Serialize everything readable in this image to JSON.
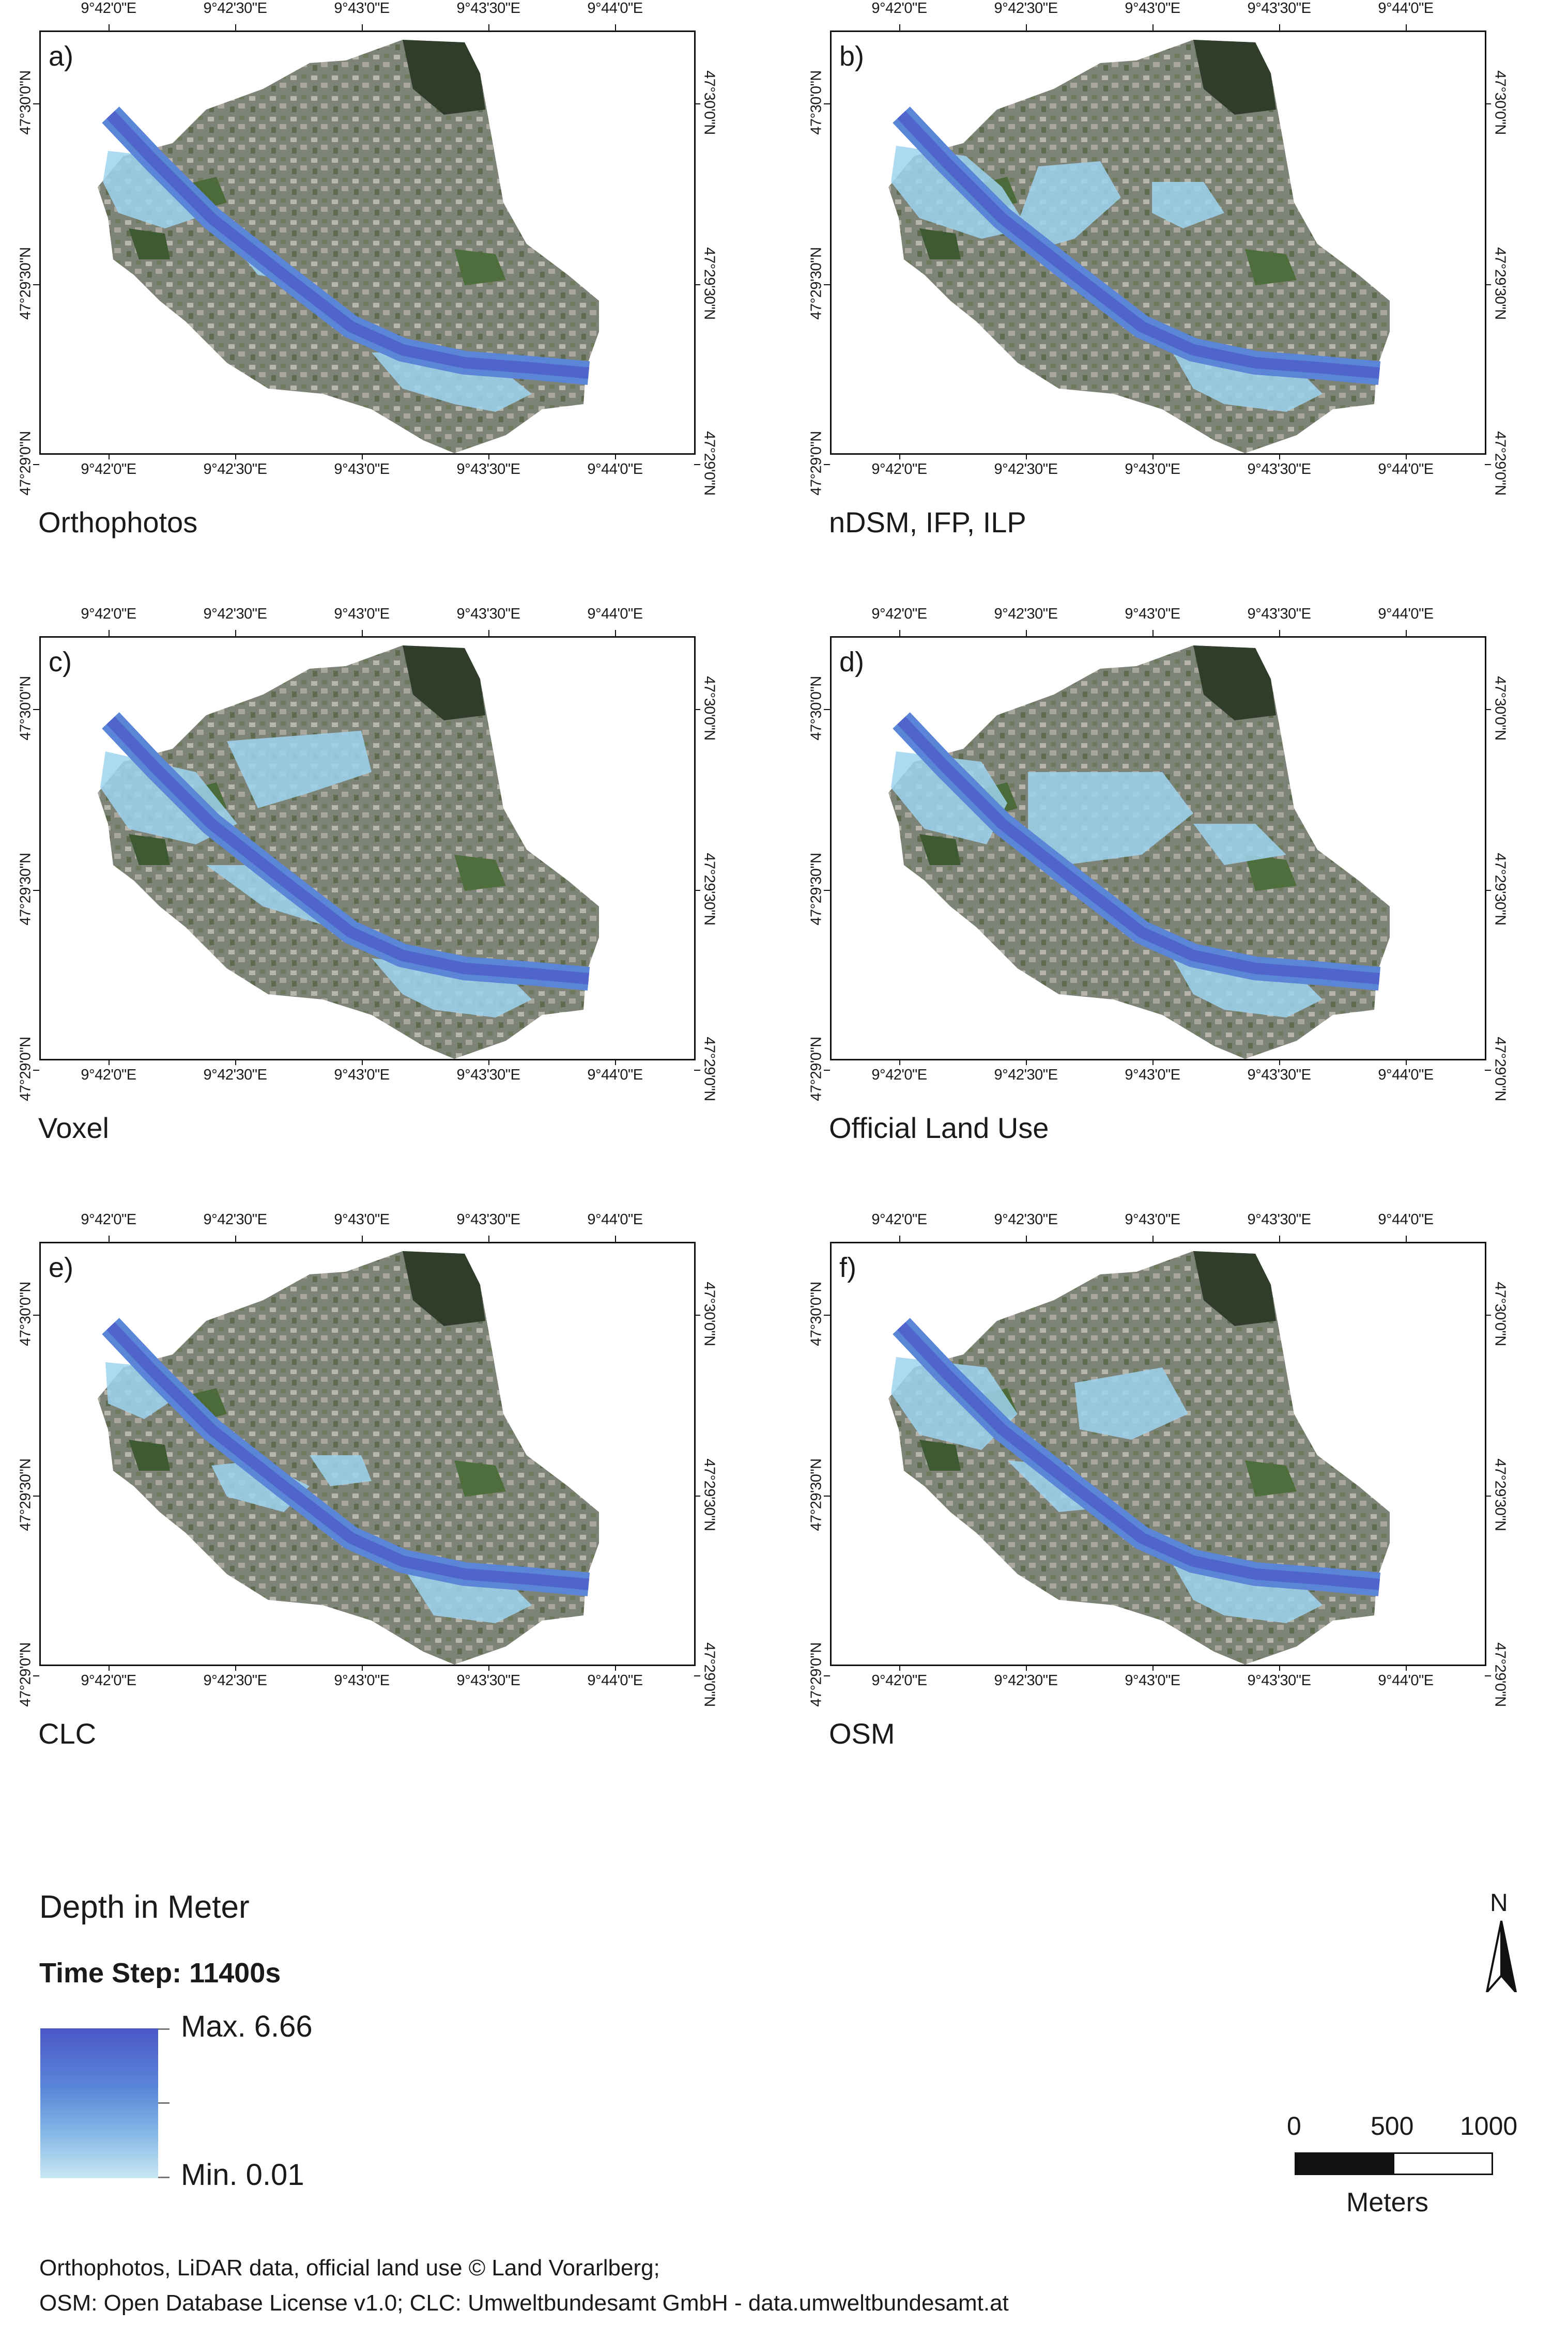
{
  "axis_ticks": {
    "lon": [
      "9°42'0\"E",
      "9°42'30\"E",
      "9°43'0\"E",
      "9°43'30\"E",
      "9°44'0\"E"
    ],
    "lat": [
      "47°30'0\"N",
      "47°29'30\"N",
      "47°29'0\"N"
    ]
  },
  "panels": [
    {
      "letter": "a)",
      "caption": "Orthophotos"
    },
    {
      "letter": "b)",
      "caption": "nDSM, IFP, ILP"
    },
    {
      "letter": "c)",
      "caption": "Voxel"
    },
    {
      "letter": "d)",
      "caption": "Official Land Use"
    },
    {
      "letter": "e)",
      "caption": "CLC"
    },
    {
      "letter": "f)",
      "caption": "OSM"
    }
  ],
  "legend": {
    "title": "Depth in Meter",
    "time_step": "Time Step: 11400s",
    "max_label": "Max. 6.66",
    "min_label": "Min. 0.01",
    "colors": {
      "max": "#4a57c6",
      "mid": "#5b86d8",
      "min": "#c8e8f4"
    }
  },
  "north_arrow": {
    "label": "N"
  },
  "scale_bar": {
    "labels": [
      "0",
      "500",
      "1000"
    ],
    "unit": "Meters"
  },
  "credits": {
    "line1": "Orthophotos, LiDAR data, official land use © Land Vorarlberg;",
    "line2": "OSM: Open Database License v1.0; CLC: Umweltbundesamt GmbH - data.umweltbundesamt.at"
  }
}
